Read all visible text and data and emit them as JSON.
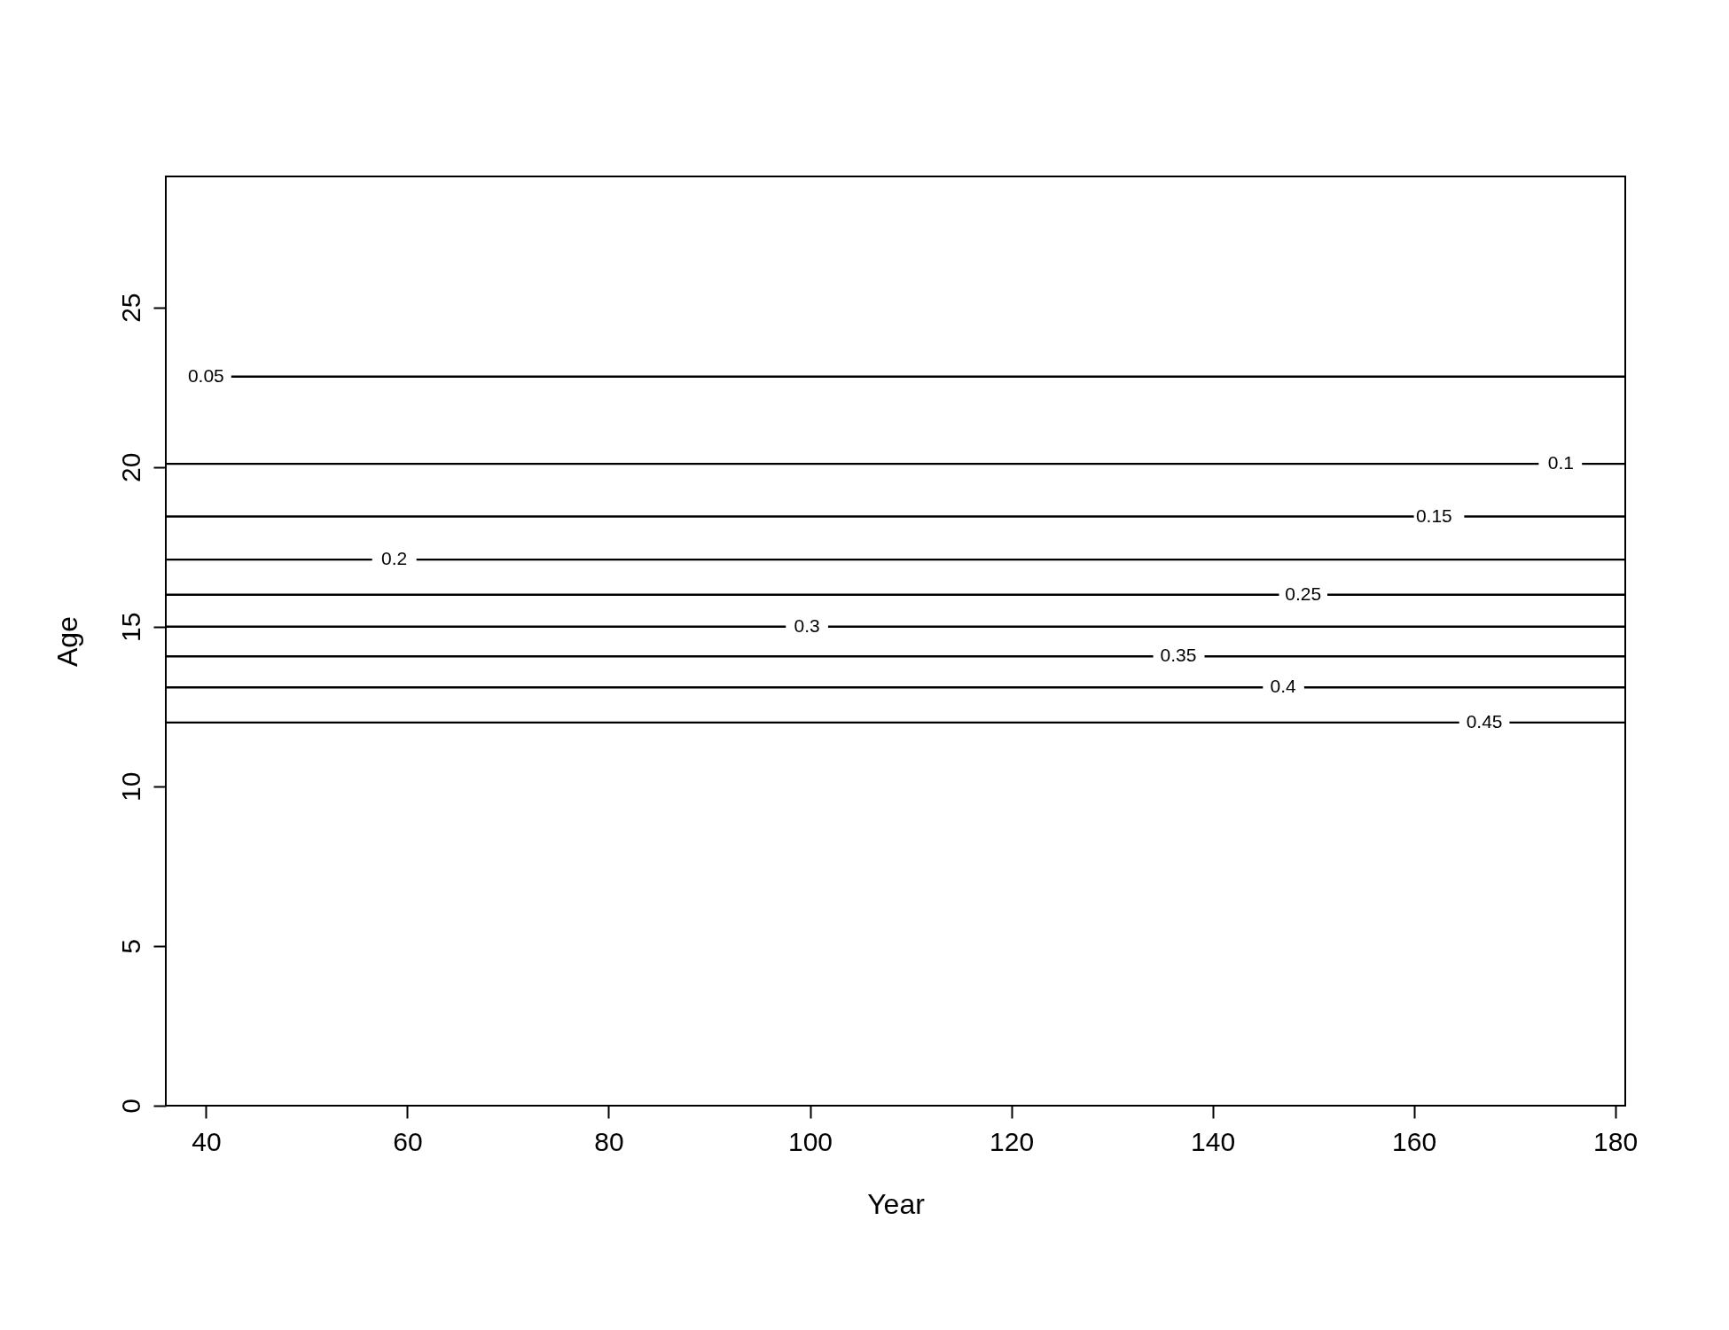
{
  "chart_data": {
    "type": "line",
    "xlabel": "Year",
    "ylabel": "Age",
    "xlim": [
      36,
      181
    ],
    "ylim": [
      0,
      29.1
    ],
    "xticks": [
      40,
      60,
      80,
      100,
      120,
      140,
      160,
      180
    ],
    "yticks": [
      0,
      5,
      10,
      15,
      20,
      25
    ],
    "grid": false,
    "legend": false,
    "series": [
      {
        "name": "0.05",
        "color": "#000000",
        "x": [
          42.5,
          181
        ],
        "values": [
          22.83,
          22.83
        ]
      },
      {
        "name": "0.1",
        "color": "#000000",
        "x": [
          36,
          172.4,
          174.6,
          176.7,
          181
        ],
        "values": [
          20.1,
          20.1,
          null,
          20.1,
          20.1
        ]
      },
      {
        "name": "0.15",
        "color": "#000000",
        "x": [
          36,
          160.0,
          162.0,
          165.0,
          181
        ],
        "values": [
          18.45,
          18.45,
          null,
          18.45,
          18.45
        ]
      },
      {
        "name": "0.2",
        "color": "#000000",
        "x": [
          36,
          56.5,
          58.7,
          60.9,
          181
        ],
        "values": [
          17.1,
          17.1,
          null,
          17.1,
          17.1
        ]
      },
      {
        "name": "0.25",
        "color": "#000000",
        "x": [
          36,
          146.6,
          149.0,
          151.4,
          181
        ],
        "values": [
          16.0,
          16.0,
          null,
          16.0,
          16.0
        ]
      },
      {
        "name": "0.3",
        "color": "#000000",
        "x": [
          36,
          97.6,
          99.7,
          101.8,
          181
        ],
        "values": [
          15.0,
          15.0,
          null,
          15.0,
          15.0
        ]
      },
      {
        "name": "0.35",
        "color": "#000000",
        "x": [
          36,
          134.1,
          136.6,
          139.2,
          181
        ],
        "values": [
          14.07,
          14.07,
          null,
          14.07,
          14.07
        ]
      },
      {
        "name": "0.4",
        "color": "#000000",
        "x": [
          36,
          145.0,
          147.0,
          149.1,
          181
        ],
        "values": [
          13.1,
          13.1,
          null,
          13.1,
          13.1
        ]
      },
      {
        "name": "0.45",
        "color": "#000000",
        "x": [
          36,
          164.5,
          167.0,
          169.5,
          181
        ],
        "values": [
          12.0,
          12.0,
          null,
          12.0,
          12.0
        ]
      }
    ]
  }
}
